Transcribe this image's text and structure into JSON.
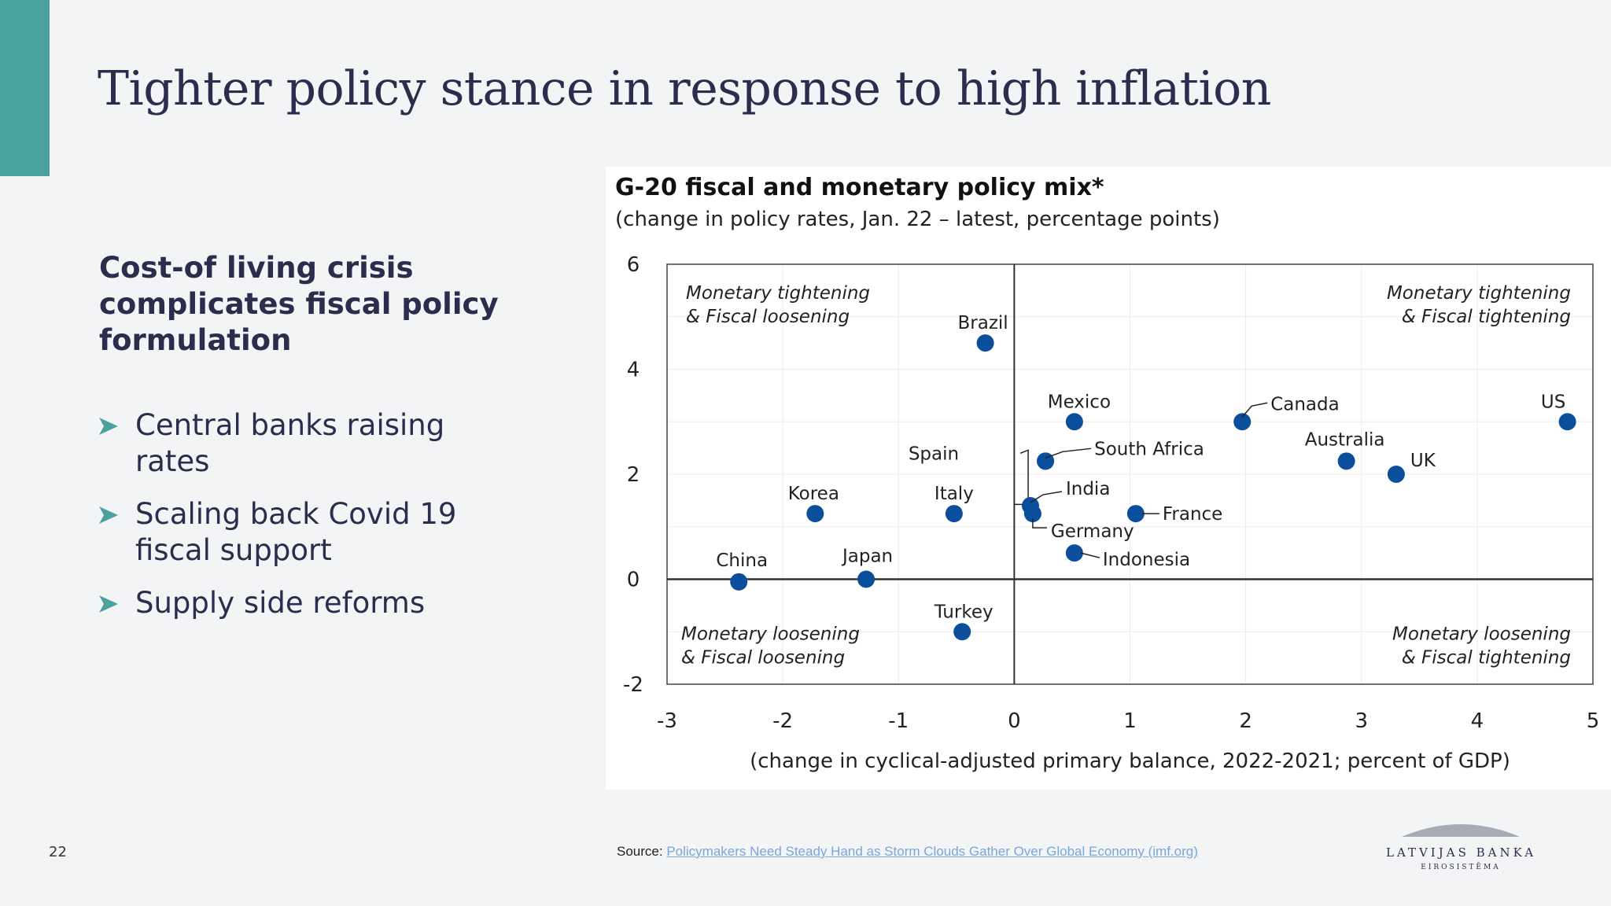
{
  "slide": {
    "title": "Tighter policy stance in response to high inflation",
    "subheading": "Cost-of living crisis complicates fiscal policy formulation",
    "bullets": [
      "Central banks raising rates",
      "Scaling back Covid 19 fiscal support",
      "Supply side reforms"
    ],
    "bullet_icon": "arrow-right-icon",
    "page_number": "22",
    "source_label": "Source:",
    "source_link": "Policymakers Need Steady Hand as Storm Clouds Gather Over Global Economy (imf.org)",
    "logo_name": "LATVIJAS BANKA",
    "logo_sub": "EIROSISTĒMA",
    "colors": {
      "accent": "#4aa29f",
      "title": "#2e2c4d",
      "point": "#0b4e9b",
      "link": "#7ba6d8"
    }
  },
  "chart_data": {
    "type": "scatter",
    "title": "G-20 fiscal and monetary policy mix*",
    "subtitle": "(change in policy rates, Jan. 22 – latest, percentage points)",
    "xlabel": "(change in cyclical-adjusted primary balance, 2022-2021; percent of GDP)",
    "ylabel": "",
    "xlim": [
      -3,
      5
    ],
    "ylim": [
      -2,
      6
    ],
    "xticks": [
      "-3",
      "-2",
      "-1",
      "0",
      "1",
      "2",
      "3",
      "4",
      "5"
    ],
    "yticks": [
      "6",
      "4",
      "2",
      "0",
      "-2"
    ],
    "grid": true,
    "quadrants": [
      {
        "line1": "Monetary tightening",
        "line2": "& Fiscal loosening",
        "position": "top-left"
      },
      {
        "line1": "Monetary tightening",
        "line2": "& Fiscal tightening",
        "position": "top-right"
      },
      {
        "line1": "Monetary loosening",
        "line2": "& Fiscal loosening",
        "position": "bottom-left"
      },
      {
        "line1": "Monetary loosening",
        "line2": "& Fiscal tightening",
        "position": "bottom-right"
      }
    ],
    "points": [
      {
        "label": "Brazil",
        "x": -0.25,
        "y": 4.5
      },
      {
        "label": "Mexico",
        "x": 0.52,
        "y": 3.0
      },
      {
        "label": "Canada",
        "x": 1.97,
        "y": 3.0
      },
      {
        "label": "US",
        "x": 4.78,
        "y": 3.0
      },
      {
        "label": "Spain",
        "x": 0.27,
        "y": 2.25
      },
      {
        "label": "South Africa",
        "x": 0.27,
        "y": 2.25
      },
      {
        "label": "Australia",
        "x": 2.87,
        "y": 2.25
      },
      {
        "label": "UK",
        "x": 3.3,
        "y": 2.0
      },
      {
        "label": "Korea",
        "x": -1.72,
        "y": 1.25
      },
      {
        "label": "Italy",
        "x": -0.52,
        "y": 1.25
      },
      {
        "label": "India",
        "x": 0.14,
        "y": 1.4
      },
      {
        "label": "Germany",
        "x": 0.16,
        "y": 1.25
      },
      {
        "label": "France",
        "x": 1.05,
        "y": 1.25
      },
      {
        "label": "Indonesia",
        "x": 0.52,
        "y": 0.5
      },
      {
        "label": "China",
        "x": -2.38,
        "y": -0.05
      },
      {
        "label": "Japan",
        "x": -1.28,
        "y": 0.0
      },
      {
        "label": "Turkey",
        "x": -0.45,
        "y": -1.0
      }
    ]
  }
}
